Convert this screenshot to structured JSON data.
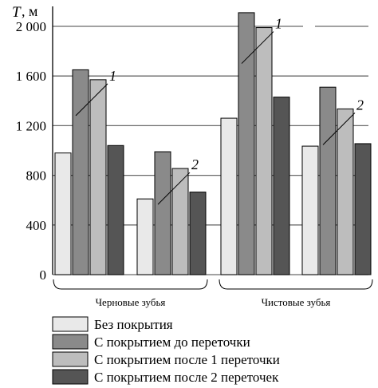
{
  "chart_data": {
    "type": "bar",
    "y_axis": {
      "symbol": "T",
      "unit": ", м"
    },
    "ylim": [
      0,
      2000
    ],
    "yticks": [
      0,
      400,
      800,
      1200,
      1600,
      2000
    ],
    "ytick_labels": [
      "0",
      "400",
      "800",
      "1 200",
      "1 600",
      "2 000"
    ],
    "grid": true,
    "legend_position": "bottom",
    "groups": [
      {
        "label": "Черновые зубья",
        "subgroups": [
          {
            "annotation": "1",
            "values": [
              980,
              1650,
              1570,
              1040
            ]
          },
          {
            "annotation": "2",
            "values": [
              610,
              990,
              855,
              665
            ]
          }
        ]
      },
      {
        "label": "Чистовые зубья",
        "subgroups": [
          {
            "annotation": "1",
            "values": [
              1260,
              2110,
              1990,
              1430
            ]
          },
          {
            "annotation": "2",
            "values": [
              1035,
              1510,
              1335,
              1055
            ]
          }
        ]
      }
    ],
    "series": [
      {
        "name": "Без покрытия",
        "color": "#e9e9e9"
      },
      {
        "name": "С покрытием до переточки",
        "color": "#8a8a8a"
      },
      {
        "name": "С покрытием после 1 переточки",
        "color": "#bdbdbd"
      },
      {
        "name": "С покрытием после 2 переточек",
        "color": "#555555"
      }
    ]
  }
}
